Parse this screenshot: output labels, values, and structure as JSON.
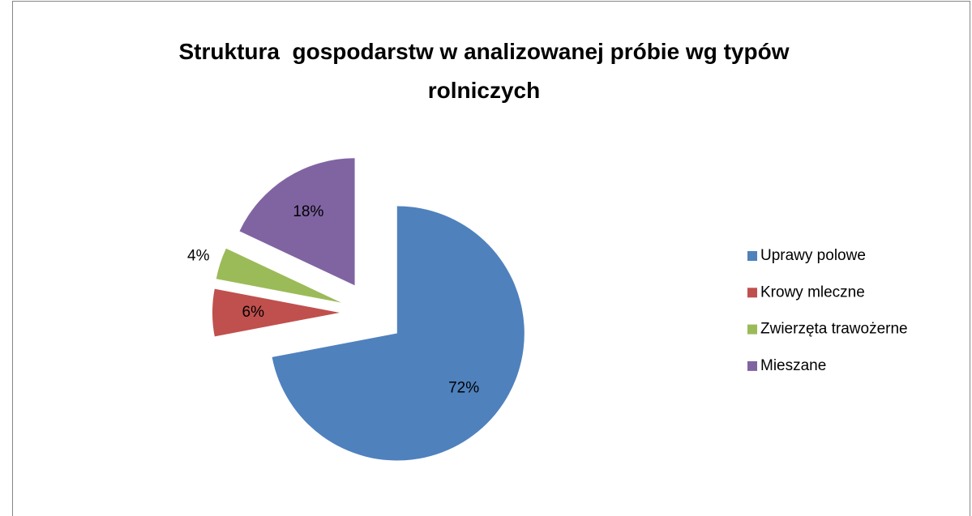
{
  "chart_data": {
    "type": "pie",
    "title": "Struktura  gospodarstw w analizowanej próbie wg typów rolniczych",
    "categories": [
      "Uprawy polowe",
      "Krowy mleczne",
      "Zwierzęta trawożerne",
      "Mieszane"
    ],
    "values": [
      72,
      6,
      4,
      18
    ],
    "value_labels": [
      "72%",
      "6%",
      "4%",
      "18%"
    ],
    "colors": [
      "#4f81bd",
      "#c0504d",
      "#9bbb59",
      "#8064a2"
    ],
    "legend": "right"
  }
}
